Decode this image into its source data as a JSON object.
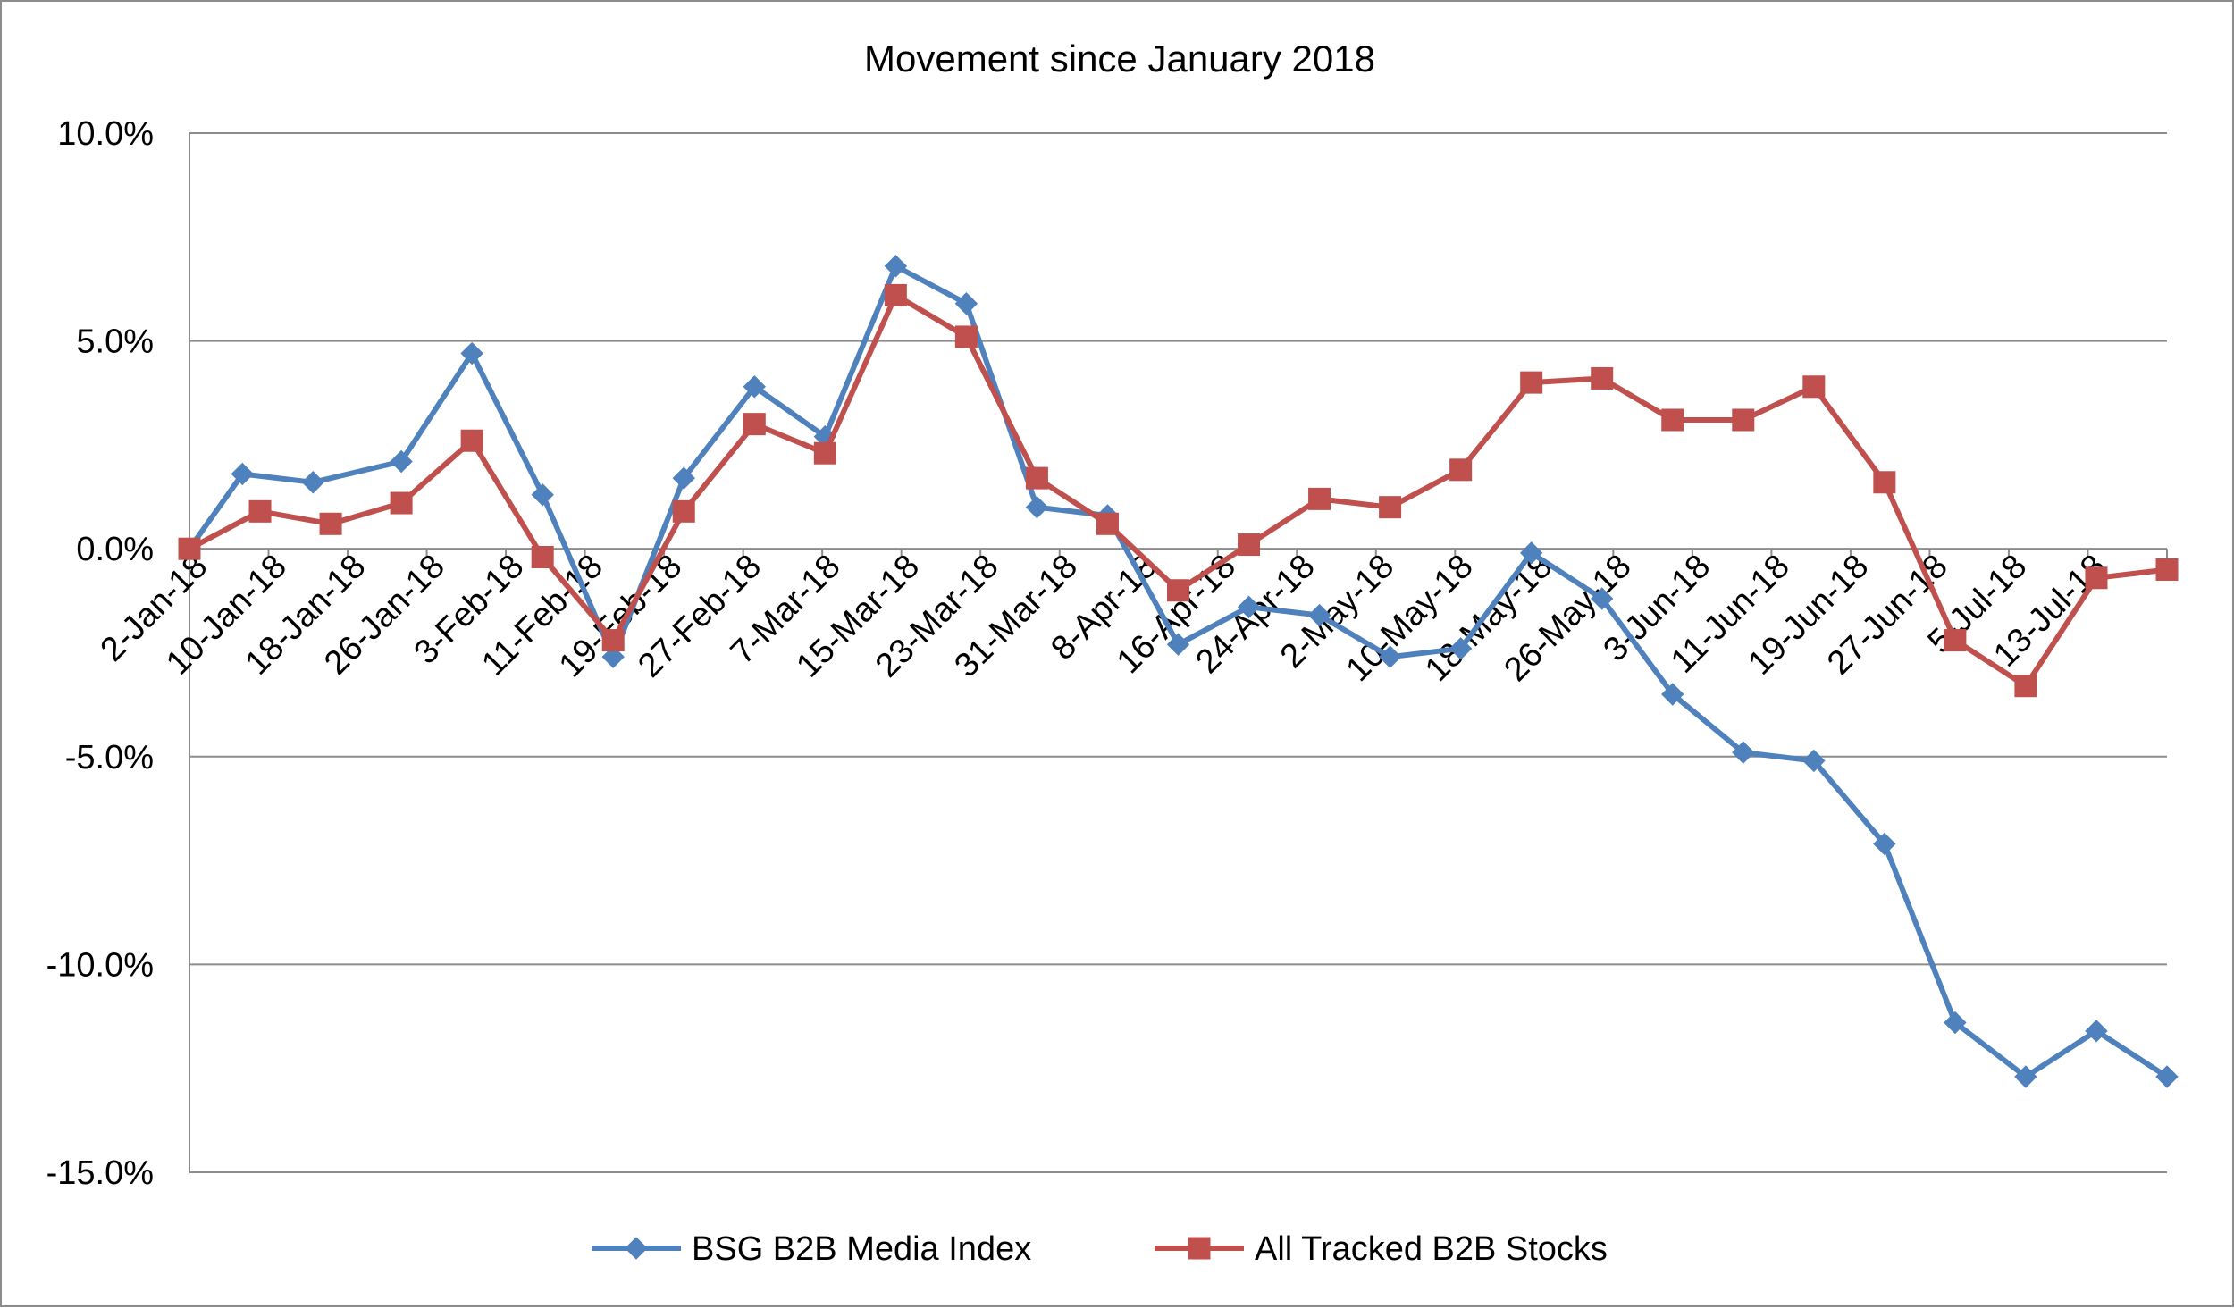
{
  "chart_data": {
    "type": "line",
    "title": "Movement since January 2018",
    "xlabel": "",
    "ylabel": "",
    "ylim": [
      -15,
      10
    ],
    "yticks": [
      10,
      5,
      0,
      -5,
      -10,
      -15
    ],
    "ytick_labels": [
      "10.0%",
      "5.0%",
      "0.0%",
      "-5.0%",
      "-10.0%",
      "-15.0%"
    ],
    "grid": true,
    "legend_position": "bottom",
    "x": [
      "2-Jan-18",
      "6-Jan-18",
      "10-Jan-18",
      "14-Jan-18",
      "18-Jan-18",
      "22-Jan-18",
      "26-Jan-18",
      "30-Jan-18",
      "3-Feb-18",
      "7-Feb-18",
      "11-Feb-18",
      "15-Feb-18",
      "19-Feb-18",
      "23-Feb-18",
      "27-Feb-18",
      "3-Mar-18",
      "7-Mar-18",
      "11-Mar-18",
      "15-Mar-18",
      "19-Mar-18",
      "23-Mar-18",
      "27-Mar-18",
      "31-Mar-18",
      "4-Apr-18",
      "8-Apr-18",
      "12-Apr-18",
      "16-Apr-18",
      "20-Apr-18",
      "24-Apr-18",
      "28-Apr-18",
      "2-May-18",
      "6-May-18",
      "10-May-18",
      "14-May-18",
      "18-May-18",
      "22-May-18",
      "26-May-18",
      "30-May-18",
      "3-Jun-18",
      "7-Jun-18",
      "11-Jun-18",
      "15-Jun-18",
      "19-Jun-18",
      "23-Jun-18",
      "27-Jun-18",
      "1-Jul-18",
      "5-Jul-18",
      "9-Jul-18",
      "13-Jul-18",
      "17-Jul-18"
    ],
    "x_tick_labels": [
      "2-Jan-18",
      "10-Jan-18",
      "18-Jan-18",
      "26-Jan-18",
      "3-Feb-18",
      "11-Feb-18",
      "19-Feb-18",
      "27-Feb-18",
      "7-Mar-18",
      "15-Mar-18",
      "23-Mar-18",
      "31-Mar-18",
      "8-Apr-18",
      "16-Apr-18",
      "24-Apr-18",
      "2-May-18",
      "10-May-18",
      "18-May-18",
      "26-May-18",
      "3-Jun-18",
      "11-Jun-18",
      "19-Jun-18",
      "27-Jun-18",
      "5-Jul-18",
      "13-Jul-18"
    ],
    "series": [
      {
        "name": "BSG B2B Media Index",
        "color": "#4f81bd",
        "marker": "diamond",
        "points": [
          [
            0,
            0.0
          ],
          [
            3,
            1.8
          ],
          [
            7,
            1.6
          ],
          [
            12,
            2.1
          ],
          [
            16,
            4.7
          ],
          [
            20,
            1.3
          ],
          [
            24,
            -2.6
          ],
          [
            28,
            1.7
          ],
          [
            32,
            3.9
          ],
          [
            36,
            2.7
          ],
          [
            40,
            6.8
          ],
          [
            44,
            5.9
          ],
          [
            48,
            1.0
          ],
          [
            52,
            0.8
          ],
          [
            56,
            -2.3
          ],
          [
            60,
            -1.4
          ],
          [
            64,
            -1.6
          ],
          [
            68,
            -2.6
          ],
          [
            72,
            -2.4
          ],
          [
            76,
            -0.1
          ],
          [
            80,
            -1.2
          ],
          [
            84,
            -3.5
          ],
          [
            88,
            -4.9
          ],
          [
            92,
            -5.1
          ],
          [
            96,
            -7.1
          ],
          [
            100,
            -11.4
          ],
          [
            104,
            -12.7
          ],
          [
            108,
            -11.6
          ],
          [
            112,
            -12.7
          ]
        ]
      },
      {
        "name": "All Tracked B2B Stocks",
        "color": "#c0504d",
        "marker": "square",
        "points": [
          [
            0,
            0.0
          ],
          [
            4,
            0.9
          ],
          [
            8,
            0.6
          ],
          [
            12,
            1.1
          ],
          [
            16,
            2.6
          ],
          [
            20,
            -0.2
          ],
          [
            24,
            -2.2
          ],
          [
            28,
            0.9
          ],
          [
            32,
            3.0
          ],
          [
            36,
            2.3
          ],
          [
            40,
            6.1
          ],
          [
            44,
            5.1
          ],
          [
            48,
            1.7
          ],
          [
            52,
            0.6
          ],
          [
            56,
            -1.0
          ],
          [
            60,
            0.1
          ],
          [
            64,
            1.2
          ],
          [
            68,
            1.0
          ],
          [
            72,
            1.9
          ],
          [
            76,
            4.0
          ],
          [
            80,
            4.1
          ],
          [
            84,
            3.1
          ],
          [
            88,
            3.1
          ],
          [
            92,
            3.9
          ],
          [
            96,
            1.6
          ],
          [
            100,
            -2.2
          ],
          [
            104,
            -3.3
          ],
          [
            108,
            -0.7
          ],
          [
            112,
            -0.5
          ]
        ]
      }
    ]
  }
}
